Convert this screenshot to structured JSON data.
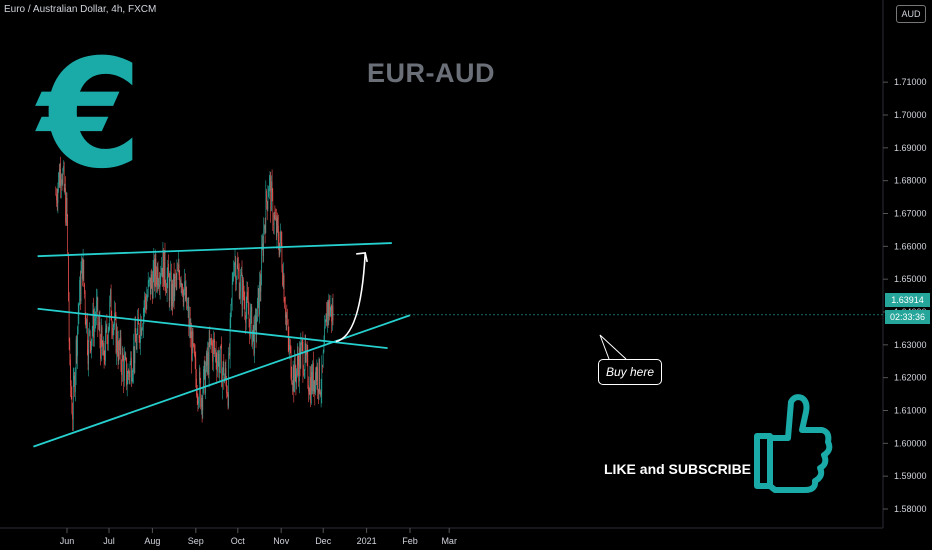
{
  "header": "Euro / Australian Dollar, 4h, FXCM",
  "title": "EUR-AUD",
  "euro_symbol": "€",
  "like_text": "LIKE and SUBSCRIBE",
  "buy_text": "Buy here",
  "currency": "AUD",
  "last_price_label": "1.63914",
  "countdown_label": "02:33:36",
  "colors": {
    "accent": "#1aaaa8",
    "line": "#26d0ce",
    "up": "#26a69a",
    "down": "#ef5350"
  },
  "chart_data": {
    "type": "candlestick",
    "title": "EUR-AUD",
    "timeframe": "4h",
    "ylim": [
      1.575,
      1.72
    ],
    "y_ticks": [
      "1.58000",
      "1.59000",
      "1.60000",
      "1.61000",
      "1.62000",
      "1.63000",
      "1.64000",
      "1.65000",
      "1.66000",
      "1.67000",
      "1.68000",
      "1.69000",
      "1.70000",
      "1.71000"
    ],
    "x_ticks": [
      "Jun",
      "Jul",
      "Aug",
      "Sep",
      "Oct",
      "Nov",
      "Dec",
      "2021",
      "Feb",
      "Mar"
    ],
    "last_price": 1.63914,
    "path": [
      [
        "May 24",
        1.676
      ],
      [
        "May 28",
        1.685
      ],
      [
        "Jun 1",
        1.668
      ],
      [
        "Jun 3",
        1.62
      ],
      [
        "Jun 5",
        1.61
      ],
      [
        "Jun 9",
        1.64
      ],
      [
        "Jun 12",
        1.655
      ],
      [
        "Jun 16",
        1.63
      ],
      [
        "Jun 22",
        1.64
      ],
      [
        "Jun 27",
        1.625
      ],
      [
        "Jul 2",
        1.642
      ],
      [
        "Jul 8",
        1.628
      ],
      [
        "Jul 14",
        1.62
      ],
      [
        "Jul 20",
        1.63
      ],
      [
        "Jul 26",
        1.642
      ],
      [
        "Aug 1",
        1.65
      ],
      [
        "Aug 8",
        1.655
      ],
      [
        "Aug 15",
        1.645
      ],
      [
        "Aug 21",
        1.653
      ],
      [
        "Aug 26",
        1.64
      ],
      [
        "Sep 1",
        1.62
      ],
      [
        "Sep 5",
        1.615
      ],
      [
        "Sep 12",
        1.63
      ],
      [
        "Sep 18",
        1.625
      ],
      [
        "Sep 24",
        1.617
      ],
      [
        "Sep 28",
        1.657
      ],
      [
        "Oct 2",
        1.65
      ],
      [
        "Oct 8",
        1.64
      ],
      [
        "Oct 13",
        1.632
      ],
      [
        "Oct 17",
        1.648
      ],
      [
        "Oct 20",
        1.668
      ],
      [
        "Oct 23",
        1.68
      ],
      [
        "Oct 28",
        1.665
      ],
      [
        "Nov 1",
        1.66
      ],
      [
        "Nov 6",
        1.63
      ],
      [
        "Nov 10",
        1.62
      ],
      [
        "Nov 16",
        1.628
      ],
      [
        "Nov 22",
        1.618
      ],
      [
        "Nov 26",
        1.622
      ],
      [
        "Nov 30",
        1.618
      ],
      [
        "Dec 4",
        1.642
      ],
      [
        "Dec 8",
        1.63914
      ]
    ],
    "trendlines": [
      {
        "name": "resistance",
        "from": [
          "May 11",
          1.657
        ],
        "to": [
          "Jan 19",
          1.661
        ]
      },
      {
        "name": "descending",
        "from": [
          "May 11",
          1.641
        ],
        "to": [
          "Jan 16",
          1.629
        ]
      },
      {
        "name": "support",
        "from": [
          "May 8",
          1.599
        ],
        "to": [
          "Feb 1",
          1.639
        ]
      }
    ],
    "projection": {
      "from": [
        "Dec 10",
        1.631
      ],
      "to": [
        "Dec 31",
        1.658
      ]
    }
  }
}
